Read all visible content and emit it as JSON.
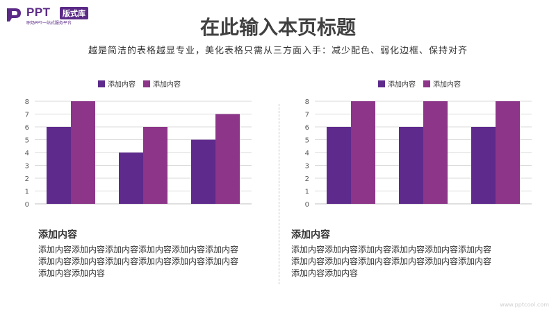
{
  "logo": {
    "name": "PPT",
    "badge": "版式库",
    "tagline": "职场PPT一站式服务平台"
  },
  "header": {
    "title": "在此输入本页标题",
    "subtitle": "越是简洁的表格越显专业，美化表格只需从三方面入手：减少配色、弱化边框、保持对齐"
  },
  "colors": {
    "series1": "#5e2a8c",
    "series2": "#8c3589",
    "grid": "#d9d9d9",
    "axis": "#595959"
  },
  "chart_data": [
    {
      "type": "bar",
      "categories": [
        "",
        "",
        ""
      ],
      "series": [
        {
          "name": "添加内容",
          "values": [
            6,
            4,
            5
          ]
        },
        {
          "name": "添加内容",
          "values": [
            8,
            6,
            7
          ]
        }
      ],
      "yticks": [
        "0",
        "1",
        "2",
        "3",
        "4",
        "5",
        "6",
        "7",
        "8"
      ],
      "ylim": [
        0,
        8
      ],
      "grid": true,
      "legend": "top-center"
    },
    {
      "type": "bar",
      "categories": [
        "",
        "",
        ""
      ],
      "series": [
        {
          "name": "添加内容",
          "values": [
            6,
            6,
            6
          ]
        },
        {
          "name": "添加内容",
          "values": [
            8,
            8,
            8
          ]
        }
      ],
      "yticks": [
        "0",
        "1",
        "2",
        "3",
        "4",
        "5",
        "6",
        "7",
        "8"
      ],
      "ylim": [
        0,
        8
      ],
      "grid": true,
      "legend": "top-center"
    }
  ],
  "sections": [
    {
      "title": "添加内容",
      "lines": [
        "添加内容添加内容添加内容添加内容添加内容添加内容",
        "添加内容添加内容添加内容添加内容添加内容添加内容",
        "添加内容添加内容"
      ]
    },
    {
      "title": "添加内容",
      "lines": [
        "添加内容添加内容添加内容添加内容添加内容添加内容",
        "添加内容添加内容添加内容添加内容添加内容添加内容",
        "添加内容添加内容"
      ]
    }
  ],
  "watermark": "www.pptcool.com"
}
